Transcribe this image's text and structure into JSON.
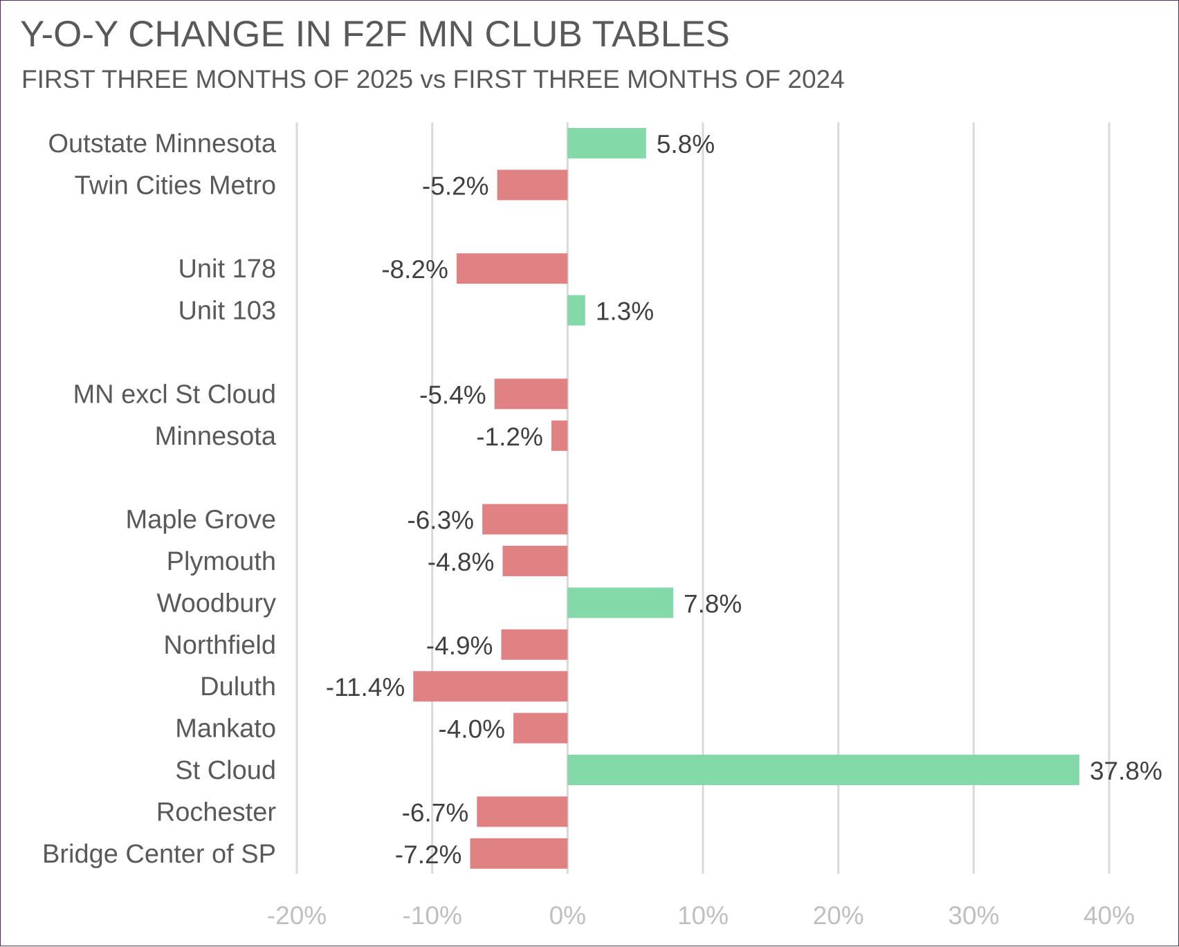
{
  "chart_data": {
    "type": "bar",
    "orientation": "horizontal",
    "title": "Y-O-Y CHANGE IN F2F MN CLUB TABLES",
    "subtitle": "FIRST THREE MONTHS OF 2025 vs FIRST THREE MONTHS OF 2024",
    "groups": [
      [
        "Outstate Minnesota",
        "Twin Cities Metro"
      ],
      [
        "Unit 178",
        "Unit 103"
      ],
      [
        "MN excl St Cloud",
        "Minnesota"
      ],
      [
        "Maple Grove",
        "Plymouth",
        "Woodbury",
        "Northfield",
        "Duluth",
        "Mankato",
        "St Cloud",
        "Rochester",
        "Bridge Center of SP"
      ]
    ],
    "categories": [
      "Outstate Minnesota",
      "Twin Cities Metro",
      "Unit 178",
      "Unit 103",
      "MN excl St Cloud",
      "Minnesota",
      "Maple Grove",
      "Plymouth",
      "Woodbury",
      "Northfield",
      "Duluth",
      "Mankato",
      "St Cloud",
      "Rochester",
      "Bridge Center of SP"
    ],
    "values": [
      5.8,
      -5.2,
      -8.2,
      1.3,
      -5.4,
      -1.2,
      -6.3,
      -4.8,
      7.8,
      -4.9,
      -11.4,
      -4.0,
      37.8,
      -6.7,
      -7.2
    ],
    "data_labels": [
      "5.8%",
      "-5.2%",
      "-8.2%",
      "1.3%",
      "-5.4%",
      "-1.2%",
      "-6.3%",
      "-4.8%",
      "7.8%",
      "-4.9%",
      "-11.4%",
      "-4.0%",
      "37.8%",
      "-6.7%",
      "-7.2%"
    ],
    "xlim": [
      -20,
      40
    ],
    "xticks": [
      -20,
      -10,
      0,
      10,
      20,
      30,
      40
    ],
    "xtick_labels": [
      "-20%",
      "-10%",
      "0%",
      "10%",
      "20%",
      "30%",
      "40%"
    ],
    "xlabel": "",
    "ylabel": "",
    "grid": "vertical",
    "legend": "none",
    "colors": {
      "positive": "#84d9a9",
      "negative": "#e08283",
      "grid": "#d9d9d9",
      "tick_text": "#bfbfbf",
      "text": "#595959",
      "frame": "#4b2e5e"
    }
  }
}
